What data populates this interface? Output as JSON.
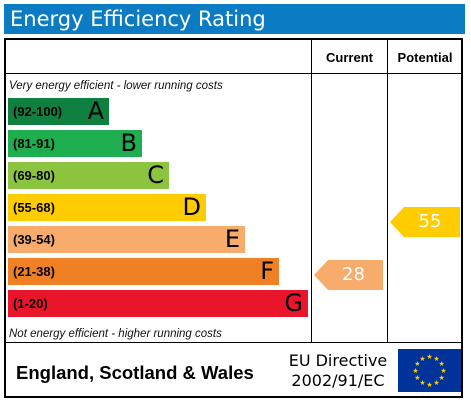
{
  "title": "Energy Efficiency Rating",
  "columns": {
    "current": "Current",
    "potential": "Potential"
  },
  "notes": {
    "top": "Very energy efficient - lower running costs",
    "bottom": "Not energy efficient - higher running costs"
  },
  "bands": [
    {
      "range": "(92-100)",
      "letter": "A",
      "color": "#0f8040"
    },
    {
      "range": "(81-91)",
      "letter": "B",
      "color": "#1fae4f"
    },
    {
      "range": "(69-80)",
      "letter": "C",
      "color": "#8cc43f"
    },
    {
      "range": "(55-68)",
      "letter": "D",
      "color": "#ffcc00"
    },
    {
      "range": "(39-54)",
      "letter": "E",
      "color": "#f7ac6b"
    },
    {
      "range": "(21-38)",
      "letter": "F",
      "color": "#ef8024"
    },
    {
      "range": "(1-20)",
      "letter": "G",
      "color": "#e9152b"
    }
  ],
  "ratings": {
    "current": {
      "value": "28",
      "band": "F",
      "color": "#f7ac6b"
    },
    "potential": {
      "value": "55",
      "band": "D",
      "color": "#ffcc00"
    }
  },
  "footer": {
    "region": "England, Scotland & Wales",
    "directive_line1": "EU Directive",
    "directive_line2": "2002/91/EC"
  },
  "colors": {
    "title_bar": "#0b7bc3",
    "flag_blue": "#003399",
    "flag_star": "#ffcc00"
  }
}
